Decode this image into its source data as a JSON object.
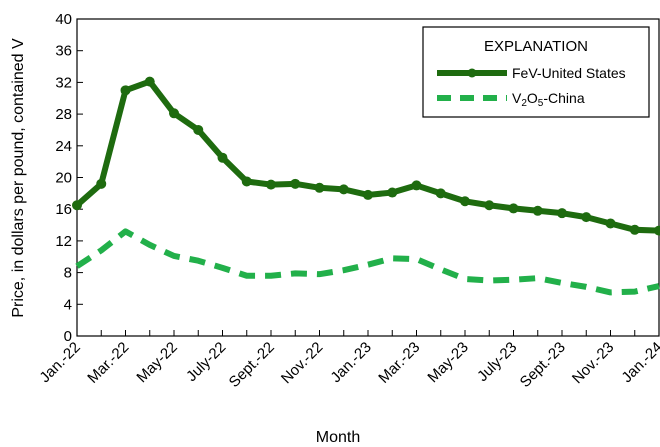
{
  "chart_data": {
    "type": "line",
    "title": "",
    "xlabel": "Month",
    "ylabel": "Price, in dollars per pound, contained V",
    "ylim": [
      0,
      40
    ],
    "yticks": [
      0,
      4,
      8,
      12,
      16,
      20,
      24,
      28,
      32,
      36,
      40
    ],
    "x_tick_labels": [
      "Jan.-22",
      "Mar.-22",
      "May-22",
      "July-22",
      "Sept.-22",
      "Nov.-22",
      "Jan.-23",
      "Mar.-23",
      "May-23",
      "July-23",
      "Sept.-23",
      "Nov.-23",
      "Jan.-24"
    ],
    "n_months": 25,
    "grid": false,
    "legend": {
      "title": "EXPLANATION",
      "placement": "top-right"
    },
    "series": [
      {
        "name": "FeV-United States",
        "style": "solid-markers",
        "color": "#1e6b0f",
        "values": [
          16.5,
          19.2,
          31.0,
          32.1,
          28.1,
          26.0,
          22.5,
          19.5,
          19.1,
          19.2,
          18.7,
          18.5,
          17.8,
          18.1,
          19.0,
          18.0,
          17.0,
          16.5,
          16.1,
          15.8,
          15.5,
          15.0,
          14.2,
          13.4,
          13.3
        ]
      },
      {
        "name": "V2O5-China",
        "name_parts": [
          "V",
          "2",
          "O",
          "5",
          "-China"
        ],
        "style": "dashed",
        "color": "#22b04a",
        "values": [
          8.8,
          10.8,
          13.2,
          11.5,
          10.1,
          9.5,
          8.6,
          7.6,
          7.6,
          7.9,
          7.8,
          8.3,
          9.0,
          9.8,
          9.7,
          8.4,
          7.2,
          7.0,
          7.1,
          7.3,
          6.7,
          6.2,
          5.5,
          5.6,
          6.3
        ]
      }
    ]
  }
}
